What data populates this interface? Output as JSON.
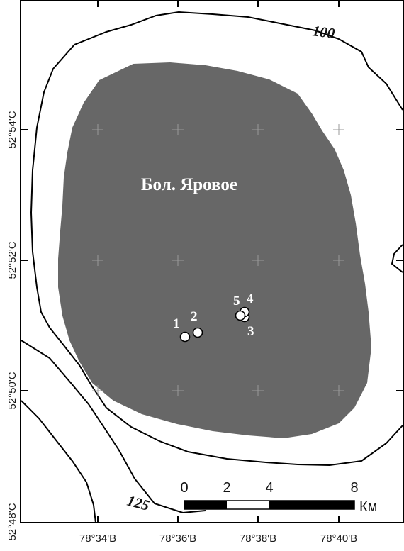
{
  "lake": {
    "name": "Бол. Яровое",
    "fill_color": "#676767"
  },
  "latitude_ticks": [
    "52°54'С",
    "52°52'С",
    "52°50'С",
    "52°48'С"
  ],
  "longitude_ticks": [
    "78°34'В",
    "78°36'В",
    "78°38'В",
    "78°40'В"
  ],
  "contours": [
    {
      "label": "100"
    },
    {
      "label": "125"
    }
  ],
  "sample_points": [
    {
      "label": "1"
    },
    {
      "label": "2"
    },
    {
      "label": "3"
    },
    {
      "label": "4"
    },
    {
      "label": "5"
    }
  ],
  "scale_bar": {
    "labels": [
      "0",
      "2",
      "4",
      "8"
    ],
    "unit": "Км"
  }
}
